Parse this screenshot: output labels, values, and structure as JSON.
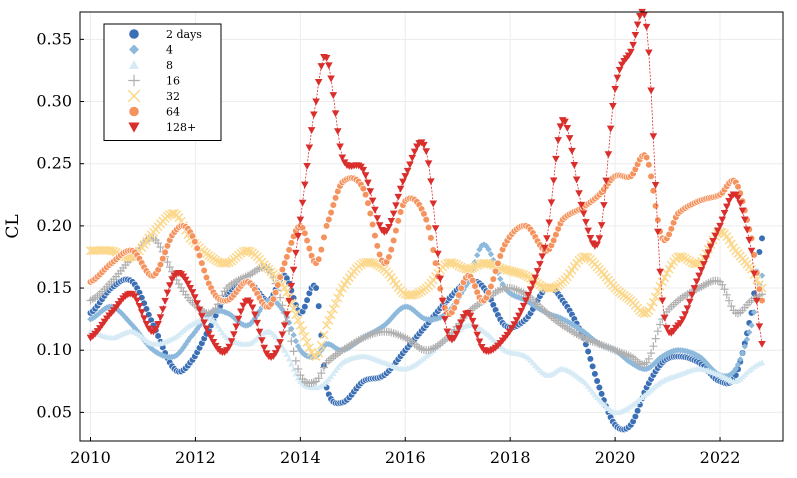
{
  "chart_data": {
    "type": "scatter",
    "title": "",
    "xlabel": "",
    "ylabel": "CL",
    "xlim": [
      2009.8,
      2023.2
    ],
    "ylim": [
      0.027,
      0.372
    ],
    "xticks": [
      2010,
      2012,
      2014,
      2016,
      2018,
      2020,
      2022
    ],
    "xtick_labels": [
      "2010",
      "2012",
      "2014",
      "2016",
      "2018",
      "2020",
      "2022"
    ],
    "yticks": [
      0.05,
      0.1,
      0.15,
      0.2,
      0.25,
      0.3,
      0.35
    ],
    "ytick_labels": [
      "0.05",
      "0.10",
      "0.15",
      "0.20",
      "0.25",
      "0.30",
      "0.35"
    ],
    "grid": true,
    "legend_position": "top-left",
    "series": [
      {
        "name": "2 days",
        "color": "#3b6fb5",
        "marker": "circle",
        "x": [
          2010.0,
          2010.4,
          2010.8,
          2011.2,
          2011.6,
          2011.9,
          2012.3,
          2012.6,
          2013.0,
          2013.4,
          2013.7,
          2014.0,
          2014.3,
          2014.5,
          2014.8,
          2015.2,
          2015.6,
          2016.0,
          2016.4,
          2016.8,
          2017.2,
          2017.5,
          2017.9,
          2018.3,
          2018.7,
          2019.0,
          2019.4,
          2019.7,
          2020.0,
          2020.3,
          2020.6,
          2020.9,
          2021.2,
          2021.6,
          2022.0,
          2022.3,
          2022.6,
          2022.8
        ],
        "y": [
          0.13,
          0.15,
          0.155,
          0.12,
          0.085,
          0.09,
          0.12,
          0.145,
          0.155,
          0.14,
          0.16,
          0.13,
          0.15,
          0.07,
          0.058,
          0.075,
          0.08,
          0.1,
          0.12,
          0.14,
          0.155,
          0.15,
          0.12,
          0.125,
          0.15,
          0.14,
          0.11,
          0.07,
          0.04,
          0.04,
          0.07,
          0.09,
          0.095,
          0.09,
          0.075,
          0.08,
          0.13,
          0.19
        ]
      },
      {
        "name": "4",
        "color": "#8db9dc",
        "marker": "diamond",
        "x": [
          2010.0,
          2010.4,
          2010.8,
          2011.2,
          2011.6,
          2011.9,
          2012.3,
          2012.6,
          2013.0,
          2013.4,
          2013.7,
          2014.0,
          2014.3,
          2014.5,
          2014.8,
          2015.2,
          2015.6,
          2016.0,
          2016.4,
          2016.8,
          2017.2,
          2017.5,
          2017.9,
          2018.3,
          2018.7,
          2019.0,
          2019.4,
          2019.7,
          2020.0,
          2020.3,
          2020.6,
          2020.9,
          2021.2,
          2021.6,
          2022.0,
          2022.3,
          2022.6,
          2022.8
        ],
        "y": [
          0.125,
          0.135,
          0.12,
          0.1,
          0.095,
          0.11,
          0.13,
          0.13,
          0.12,
          0.14,
          0.13,
          0.1,
          0.095,
          0.105,
          0.1,
          0.11,
          0.12,
          0.135,
          0.125,
          0.13,
          0.155,
          0.185,
          0.15,
          0.14,
          0.13,
          0.125,
          0.115,
          0.105,
          0.1,
          0.09,
          0.085,
          0.095,
          0.1,
          0.095,
          0.08,
          0.085,
          0.12,
          0.16
        ]
      },
      {
        "name": "8",
        "color": "#d6ebf5",
        "marker": "triangle",
        "x": [
          2010.0,
          2010.4,
          2010.8,
          2011.2,
          2011.6,
          2011.9,
          2012.3,
          2012.6,
          2013.0,
          2013.4,
          2013.7,
          2014.0,
          2014.3,
          2014.5,
          2014.8,
          2015.2,
          2015.6,
          2016.0,
          2016.4,
          2016.8,
          2017.2,
          2017.5,
          2017.9,
          2018.3,
          2018.7,
          2019.0,
          2019.4,
          2019.7,
          2020.0,
          2020.3,
          2020.6,
          2020.9,
          2021.2,
          2021.6,
          2022.0,
          2022.3,
          2022.6,
          2022.8
        ],
        "y": [
          0.115,
          0.11,
          0.115,
          0.105,
          0.11,
          0.12,
          0.125,
          0.11,
          0.105,
          0.115,
          0.1,
          0.075,
          0.07,
          0.075,
          0.09,
          0.095,
          0.09,
          0.085,
          0.095,
          0.11,
          0.12,
          0.115,
          0.1,
          0.095,
          0.08,
          0.085,
          0.075,
          0.06,
          0.05,
          0.055,
          0.065,
          0.075,
          0.08,
          0.085,
          0.08,
          0.075,
          0.085,
          0.09
        ]
      },
      {
        "name": "16",
        "color": "#b0b0b0",
        "marker": "plus",
        "x": [
          2010.0,
          2010.4,
          2010.8,
          2011.2,
          2011.6,
          2011.9,
          2012.3,
          2012.6,
          2013.0,
          2013.4,
          2013.7,
          2014.0,
          2014.3,
          2014.5,
          2014.8,
          2015.2,
          2015.6,
          2016.0,
          2016.4,
          2016.8,
          2017.2,
          2017.5,
          2017.9,
          2018.3,
          2018.7,
          2019.0,
          2019.4,
          2019.7,
          2020.0,
          2020.3,
          2020.6,
          2020.9,
          2021.2,
          2021.6,
          2022.0,
          2022.3,
          2022.6,
          2022.8
        ],
        "y": [
          0.14,
          0.155,
          0.175,
          0.19,
          0.16,
          0.14,
          0.13,
          0.15,
          0.16,
          0.165,
          0.13,
          0.08,
          0.075,
          0.09,
          0.1,
          0.11,
          0.115,
          0.11,
          0.1,
          0.11,
          0.13,
          0.14,
          0.15,
          0.145,
          0.13,
          0.12,
          0.11,
          0.105,
          0.1,
          0.095,
          0.09,
          0.125,
          0.14,
          0.15,
          0.155,
          0.13,
          0.14,
          0.145
        ]
      },
      {
        "name": "32",
        "color": "#fcd88c",
        "marker": "cross",
        "x": [
          2010.0,
          2010.4,
          2010.8,
          2011.2,
          2011.6,
          2011.9,
          2012.3,
          2012.6,
          2013.0,
          2013.4,
          2013.7,
          2014.0,
          2014.3,
          2014.5,
          2014.8,
          2015.2,
          2015.6,
          2016.0,
          2016.4,
          2016.8,
          2017.2,
          2017.5,
          2017.9,
          2018.3,
          2018.7,
          2019.0,
          2019.4,
          2019.7,
          2020.0,
          2020.3,
          2020.6,
          2020.9,
          2021.2,
          2021.6,
          2022.0,
          2022.3,
          2022.6,
          2022.8
        ],
        "y": [
          0.18,
          0.18,
          0.175,
          0.195,
          0.21,
          0.19,
          0.175,
          0.17,
          0.18,
          0.165,
          0.15,
          0.12,
          0.095,
          0.12,
          0.15,
          0.17,
          0.165,
          0.145,
          0.15,
          0.17,
          0.165,
          0.17,
          0.165,
          0.16,
          0.15,
          0.155,
          0.175,
          0.165,
          0.15,
          0.14,
          0.13,
          0.155,
          0.175,
          0.17,
          0.195,
          0.18,
          0.165,
          0.15
        ]
      },
      {
        "name": "64",
        "color": "#f5935e",
        "marker": "circle",
        "x": [
          2010.0,
          2010.4,
          2010.8,
          2011.2,
          2011.6,
          2011.9,
          2012.3,
          2012.6,
          2013.0,
          2013.4,
          2013.7,
          2014.0,
          2014.3,
          2014.5,
          2014.8,
          2015.2,
          2015.6,
          2016.0,
          2016.4,
          2016.8,
          2017.2,
          2017.5,
          2017.9,
          2018.3,
          2018.7,
          2019.0,
          2019.4,
          2019.7,
          2020.0,
          2020.3,
          2020.6,
          2020.9,
          2021.2,
          2021.6,
          2022.0,
          2022.3,
          2022.6,
          2022.8
        ],
        "y": [
          0.155,
          0.17,
          0.18,
          0.16,
          0.195,
          0.195,
          0.15,
          0.14,
          0.155,
          0.135,
          0.17,
          0.2,
          0.17,
          0.2,
          0.235,
          0.23,
          0.17,
          0.22,
          0.205,
          0.13,
          0.16,
          0.14,
          0.185,
          0.2,
          0.18,
          0.205,
          0.215,
          0.225,
          0.24,
          0.24,
          0.255,
          0.19,
          0.21,
          0.22,
          0.225,
          0.235,
          0.19,
          0.14
        ]
      },
      {
        "name": "128+",
        "color": "#d92e2b",
        "marker": "triangle-down",
        "x": [
          2010.0,
          2010.4,
          2010.8,
          2011.2,
          2011.6,
          2011.9,
          2012.3,
          2012.6,
          2013.0,
          2013.4,
          2013.7,
          2014.0,
          2014.3,
          2014.5,
          2014.8,
          2015.2,
          2015.6,
          2016.0,
          2016.4,
          2016.8,
          2017.2,
          2017.5,
          2017.9,
          2018.3,
          2018.7,
          2019.0,
          2019.4,
          2019.7,
          2020.0,
          2020.3,
          2020.6,
          2020.9,
          2021.2,
          2021.6,
          2022.0,
          2022.3,
          2022.6,
          2022.8
        ],
        "y": [
          0.11,
          0.13,
          0.145,
          0.115,
          0.16,
          0.15,
          0.11,
          0.1,
          0.14,
          0.095,
          0.12,
          0.205,
          0.3,
          0.335,
          0.255,
          0.245,
          0.195,
          0.24,
          0.26,
          0.115,
          0.13,
          0.1,
          0.11,
          0.14,
          0.19,
          0.285,
          0.21,
          0.19,
          0.31,
          0.34,
          0.36,
          0.14,
          0.12,
          0.16,
          0.2,
          0.225,
          0.18,
          0.105
        ]
      }
    ]
  }
}
